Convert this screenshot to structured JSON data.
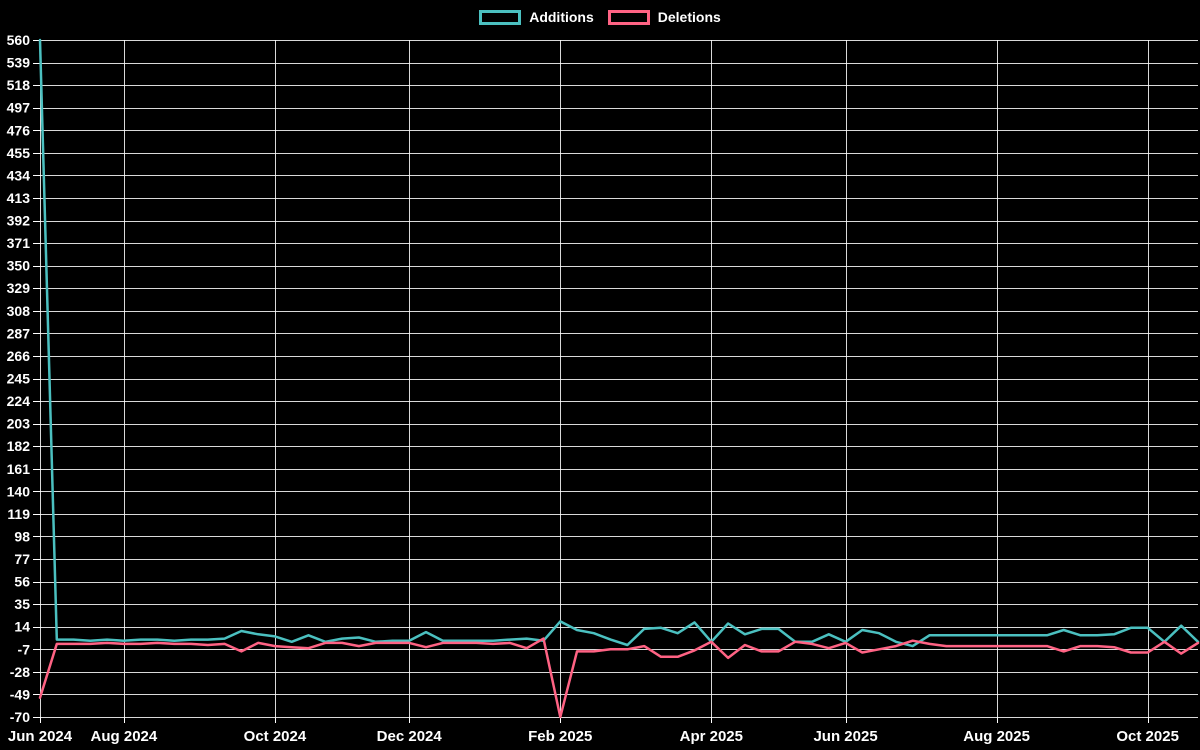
{
  "chart_data": {
    "type": "line",
    "title": "",
    "background": "#000000",
    "grid": true,
    "grid_color": "rgba(255,255,255,0.85)",
    "text_color": "#ffffff",
    "legend_position": "top",
    "y_range": [
      -70,
      560
    ],
    "y_tick_step": 21,
    "y_ticks": [
      560,
      539,
      518,
      497,
      476,
      455,
      434,
      413,
      392,
      371,
      350,
      329,
      308,
      287,
      266,
      245,
      224,
      203,
      182,
      161,
      140,
      119,
      98,
      77,
      56,
      35,
      14,
      -7,
      -28,
      -49,
      -70
    ],
    "x_ticks": {
      "labels": [
        "Jun 2024",
        "Aug 2024",
        "Oct 2024",
        "Dec 2024",
        "Feb 2025",
        "Apr 2025",
        "Jun 2025",
        "Aug 2025",
        "Oct 2025"
      ],
      "indices": [
        0,
        5,
        14,
        22,
        31,
        40,
        48,
        57,
        66
      ]
    },
    "x_unit": "week",
    "series": [
      {
        "name": "Additions",
        "color": "#4bc0c0",
        "values": [
          560,
          2,
          2,
          1,
          2,
          1,
          2,
          2,
          1,
          2,
          2,
          3,
          10,
          7,
          5,
          0,
          6,
          0,
          3,
          4,
          0,
          1,
          1,
          9,
          1,
          1,
          1,
          1,
          2,
          3,
          1,
          19,
          11,
          8,
          2,
          -3,
          12,
          13,
          8,
          18,
          0,
          17,
          7,
          12,
          12,
          0,
          0,
          7,
          0,
          11,
          8,
          0,
          -4,
          6,
          6,
          6,
          6,
          6,
          6,
          6,
          6,
          11,
          6,
          6,
          7,
          13,
          13,
          0,
          15,
          0
        ]
      },
      {
        "name": "Deletions",
        "color": "#ff6384",
        "values": [
          -52,
          -2,
          -2,
          -2,
          -1,
          -2,
          -2,
          -1,
          -2,
          -2,
          -3,
          -2,
          -9,
          -1,
          -4,
          -5,
          -6,
          -1,
          -1,
          -4,
          -1,
          -1,
          -1,
          -5,
          -1,
          -1,
          -1,
          -2,
          -1,
          -6,
          3,
          -70,
          -9,
          -9,
          -7,
          -7,
          -4,
          -14,
          -14,
          -8,
          0,
          -15,
          -3,
          -9,
          -9,
          0,
          -2,
          -6,
          -1,
          -10,
          -7,
          -4,
          1,
          -2,
          -4,
          -4,
          -4,
          -4,
          -4,
          -4,
          -4,
          -9,
          -4,
          -4,
          -5,
          -10,
          -10,
          0,
          -11,
          -1
        ]
      }
    ]
  }
}
